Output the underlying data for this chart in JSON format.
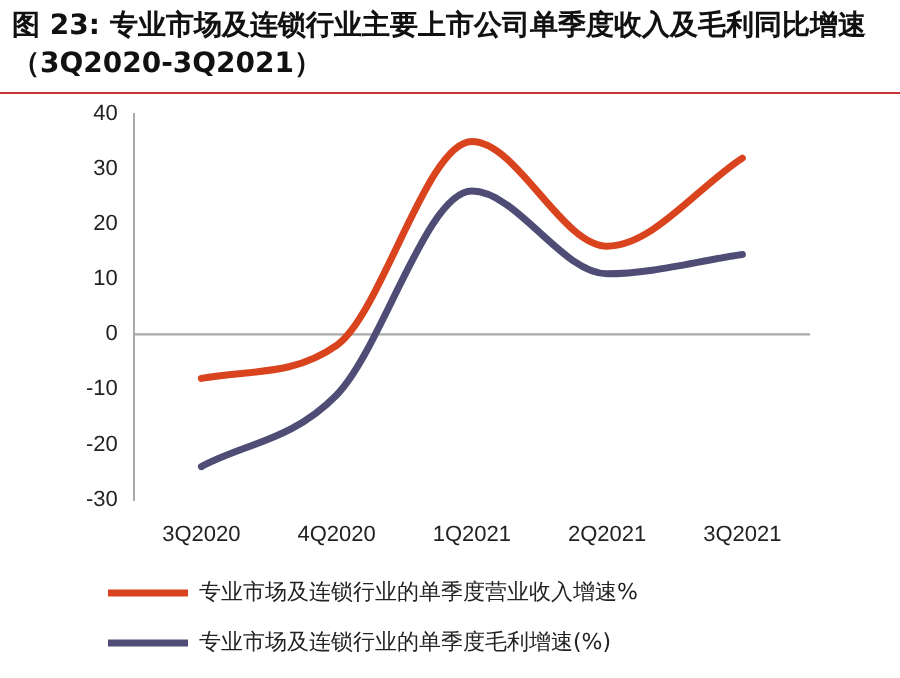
{
  "chart_data": {
    "type": "line",
    "title": "图 23: 专业市场及连锁行业主要上市公司单季度收入及毛利同比增速（3Q2020-3Q2021）",
    "categories": [
      "3Q2020",
      "4Q2020",
      "1Q2021",
      "2Q2021",
      "3Q2021"
    ],
    "series": [
      {
        "name": "专业市场及连锁行业的单季度营业收入增速%",
        "color": "#d9441e",
        "values": [
          -8,
          -2,
          35,
          16,
          32
        ]
      },
      {
        "name": "专业市场及连锁行业的单季度毛利增速(%)",
        "color": "#4f4c75",
        "values": [
          -24,
          -11,
          26,
          11,
          14.5
        ]
      }
    ],
    "ylim": [
      -30,
      40
    ],
    "yticks": [
      -30,
      -20,
      -10,
      0,
      10,
      20,
      30,
      40
    ],
    "ref_lines": [
      {
        "axis": "y",
        "value": 0,
        "color": "#aaaaaa"
      }
    ],
    "grid": false,
    "legend": "bottom",
    "marker": "none",
    "line_style": "solid"
  }
}
